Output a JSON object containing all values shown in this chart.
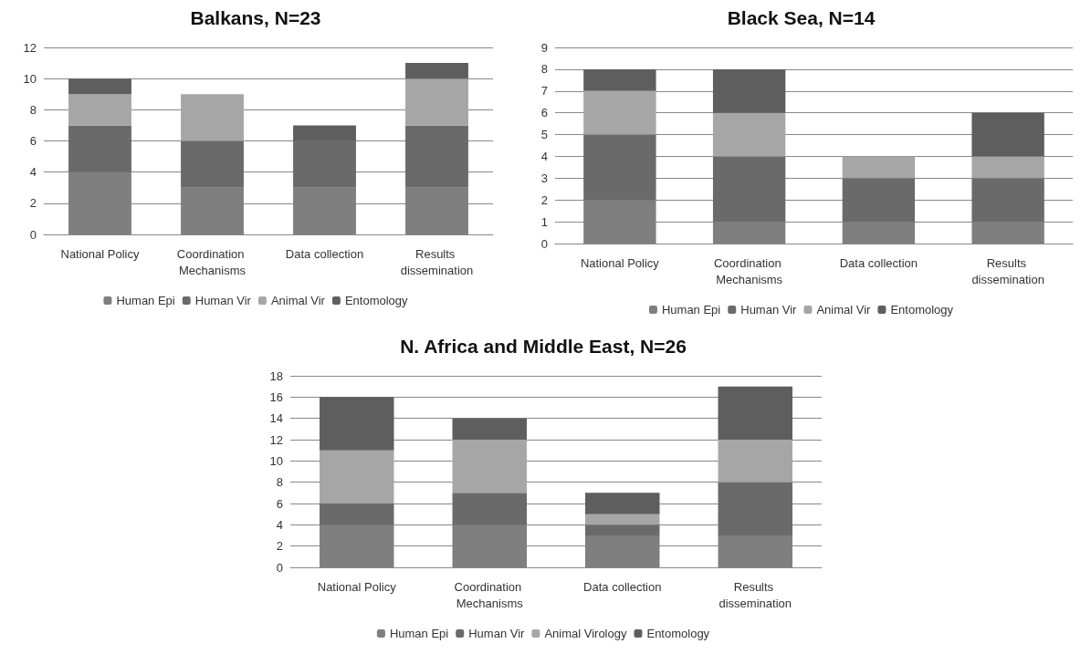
{
  "chart_data": [
    {
      "type": "bar",
      "title": "Balkans, N=23",
      "stacked": true,
      "categories": [
        "National Policy",
        "Coordination Mechanisms",
        "Data collection",
        "Results dissemination"
      ],
      "ylim": [
        0,
        12
      ],
      "yticks": [
        0,
        2,
        4,
        6,
        8,
        10,
        12
      ],
      "grid": "y",
      "legend": "bottom",
      "series": [
        {
          "name": "Human Epi",
          "color": "#7f7f7f",
          "values": [
            4,
            3,
            3,
            3
          ]
        },
        {
          "name": "Human Vir",
          "color": "#6a6a6a",
          "values": [
            3,
            3,
            3,
            4
          ]
        },
        {
          "name": "Animal Vir",
          "color": "#a6a6a6",
          "values": [
            2,
            3,
            0,
            3
          ]
        },
        {
          "name": "Entomology",
          "color": "#5e5e5e",
          "values": [
            1,
            0,
            1,
            1
          ]
        }
      ]
    },
    {
      "type": "bar",
      "title": "Black Sea, N=14",
      "stacked": true,
      "categories": [
        "National Policy",
        "Coordination Mechanisms",
        "Data collection",
        "Results dissemination"
      ],
      "ylim": [
        0,
        9
      ],
      "yticks": [
        0,
        1,
        2,
        3,
        4,
        5,
        6,
        7,
        8,
        9
      ],
      "grid": "y",
      "legend": "bottom",
      "series": [
        {
          "name": "Human Epi",
          "color": "#7f7f7f",
          "values": [
            2,
            1,
            1,
            1
          ]
        },
        {
          "name": "Human Vir",
          "color": "#6a6a6a",
          "values": [
            3,
            3,
            2,
            2
          ]
        },
        {
          "name": "Animal Vir",
          "color": "#a6a6a6",
          "values": [
            2,
            2,
            1,
            1
          ]
        },
        {
          "name": "Entomology",
          "color": "#5e5e5e",
          "values": [
            1,
            2,
            0,
            2
          ]
        }
      ]
    },
    {
      "type": "bar",
      "title": "N. Africa and Middle East, N=26",
      "stacked": true,
      "categories": [
        "National Policy",
        "Coordination Mechanisms",
        "Data collection",
        "Results dissemination"
      ],
      "ylim": [
        0,
        18
      ],
      "yticks": [
        0,
        2,
        4,
        6,
        8,
        10,
        12,
        14,
        16,
        18
      ],
      "grid": "y",
      "legend": "bottom",
      "series": [
        {
          "name": "Human Epi",
          "color": "#7f7f7f",
          "values": [
            4,
            4,
            3,
            3
          ]
        },
        {
          "name": "Human Vir",
          "color": "#6a6a6a",
          "values": [
            2,
            3,
            1,
            5
          ]
        },
        {
          "name": "Animal Virology",
          "color": "#a6a6a6",
          "values": [
            5,
            5,
            1,
            4
          ]
        },
        {
          "name": "Entomology",
          "color": "#5e5e5e",
          "values": [
            5,
            2,
            2,
            5
          ]
        }
      ]
    }
  ]
}
